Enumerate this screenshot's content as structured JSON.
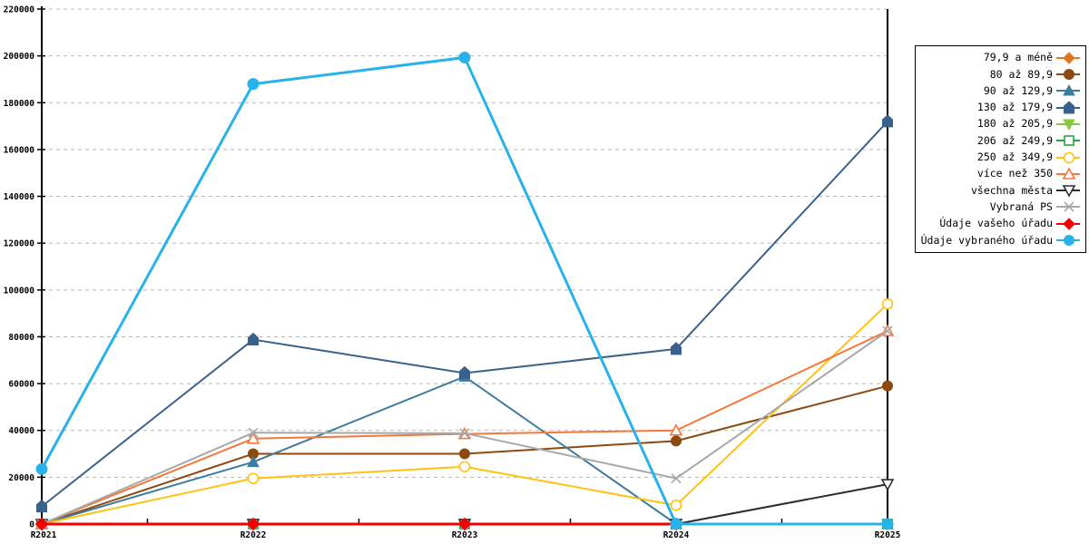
{
  "chart_data": {
    "type": "line",
    "title": "",
    "xlabel": "",
    "ylabel": "",
    "categories": [
      "R2021",
      "R2022",
      "R2023",
      "R2024",
      "R2025"
    ],
    "ylim": [
      0,
      220000
    ],
    "ytick_step": 20000,
    "y_tick_labels": [
      "0",
      "20000",
      "40000",
      "60000",
      "80000",
      "100000",
      "120000",
      "140000",
      "160000",
      "180000",
      "200000",
      "220000"
    ],
    "grid": "horizontal-dashed",
    "grid_color": "#b8b8b8",
    "axis_color": "#000000",
    "legend_position": "right",
    "highlight_column": "R2025",
    "series": [
      {
        "name": "79,9 a méně",
        "color": "#de7921",
        "marker": "diamond",
        "filled": true,
        "line_width": 2,
        "values": [
          0,
          0,
          0,
          0,
          0
        ]
      },
      {
        "name": "80 až 89,9",
        "color": "#8c4a10",
        "marker": "circle",
        "filled": true,
        "line_width": 2,
        "values": [
          0,
          30000,
          30000,
          35500,
          59000
        ]
      },
      {
        "name": "90 až 129,9",
        "color": "#3e7c9e",
        "marker": "triangle-up",
        "filled": true,
        "line_width": 2,
        "values": [
          0,
          26500,
          63000,
          0,
          0
        ]
      },
      {
        "name": "130 až 179,9",
        "color": "#3a608c",
        "marker": "pentagon",
        "filled": true,
        "line_width": 2,
        "values": [
          7500,
          78800,
          64500,
          74800,
          172000
        ]
      },
      {
        "name": "180 až 205,9",
        "color": "#8cc63f",
        "marker": "triangle-down",
        "filled": true,
        "line_width": 2,
        "values": [
          0,
          0,
          0,
          0,
          0
        ]
      },
      {
        "name": "206 až 249,9",
        "color": "#2aa146",
        "marker": "square",
        "filled": false,
        "line_width": 2,
        "values": [
          0,
          0,
          0,
          0,
          0
        ]
      },
      {
        "name": "250 až 349,9",
        "color": "#ffc20e",
        "marker": "circle",
        "filled": false,
        "line_width": 2,
        "values": [
          0,
          19500,
          24500,
          8000,
          94000
        ]
      },
      {
        "name": "více než 350",
        "color": "#f4783b",
        "marker": "triangle-up",
        "filled": false,
        "line_width": 2,
        "values": [
          0,
          36500,
          38500,
          40000,
          82500
        ]
      },
      {
        "name": "všechna města",
        "color": "#2d2d2d",
        "marker": "triangle-down",
        "filled": false,
        "line_width": 2,
        "values": [
          0,
          0,
          0,
          0,
          17000
        ]
      },
      {
        "name": "Vybraná PS",
        "color": "#a8a8a8",
        "marker": "x",
        "filled": false,
        "line_width": 2,
        "values": [
          0,
          39000,
          38800,
          19500,
          82500
        ]
      },
      {
        "name": "Údaje vašeho úřadu",
        "color": "#f40000",
        "marker": "diamond",
        "filled": true,
        "line_width": 3,
        "values": [
          0,
          0,
          0,
          0,
          null
        ]
      },
      {
        "name": "Údaje vybraného úřadu",
        "color": "#27b2ea",
        "marker": "circle",
        "filled": true,
        "line_width": 3,
        "values": [
          23500,
          188000,
          199300,
          0,
          0
        ]
      }
    ]
  }
}
